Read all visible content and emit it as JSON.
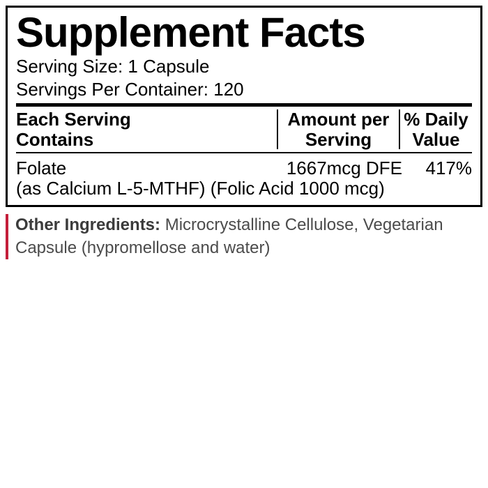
{
  "panel": {
    "title": "Supplement Facts",
    "serving_size_label": "Serving Size:",
    "serving_size_value": "1 Capsule",
    "servings_per_container_label": "Servings Per Container:",
    "servings_per_container_value": "120",
    "headers": {
      "col1_line1": "Each Serving",
      "col1_line2": "Contains",
      "col2_line1": "Amount per",
      "col2_line2": "Serving",
      "col3_line1": "% Daily",
      "col3_line2": "Value"
    },
    "rows": [
      {
        "name": "Folate",
        "amount": "1667mcg DFE",
        "dv": "417%",
        "subline": "(as Calcium L-5-MTHF) (Folic Acid 1000 mcg)"
      }
    ]
  },
  "other": {
    "label": "Other Ingredients:",
    "text": "Microcrystalline Cellulose, Vegetarian Capsule (hypromellose and water)"
  },
  "style": {
    "border_color": "#000000",
    "accent_color": "#c41e3a",
    "background": "#ffffff",
    "title_fontsize": 60,
    "body_fontsize": 26,
    "other_fontsize": 24
  }
}
